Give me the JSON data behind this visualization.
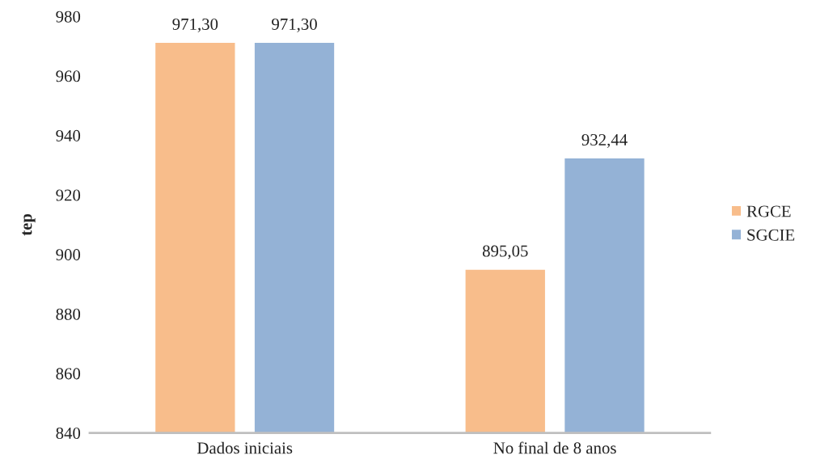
{
  "chart_data": {
    "type": "bar",
    "ylabel": "tep",
    "categories": [
      "Dados iniciais",
      "No final de 8 anos"
    ],
    "series": [
      {
        "name": "RGCE",
        "color": "#f8bd8b",
        "values": [
          971.3,
          895.05
        ],
        "value_labels": [
          "971,30",
          "895,05"
        ]
      },
      {
        "name": "SGCIE",
        "color": "#94b2d6",
        "values": [
          971.3,
          932.44
        ],
        "value_labels": [
          "971,30",
          "932,44"
        ]
      }
    ],
    "ylim": [
      840,
      980
    ],
    "yticks": [
      840,
      860,
      880,
      900,
      920,
      940,
      960,
      980
    ],
    "grid": false,
    "legend": "right"
  }
}
